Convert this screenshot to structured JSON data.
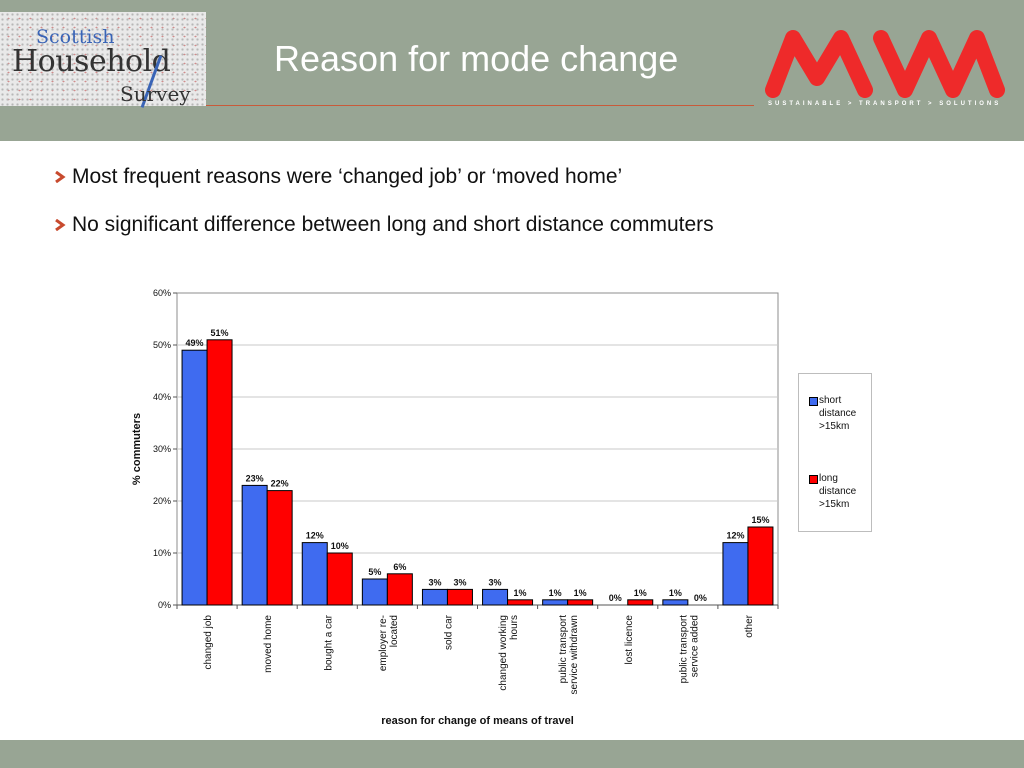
{
  "header": {
    "title": "Reason for mode change",
    "logo_left": {
      "line1": "Scottish",
      "line2": "Household",
      "line3": "Survey"
    },
    "logo_right": {
      "mark": "MVA",
      "tagline": "SUSTAINABLE > TRANSPORT > SOLUTIONS"
    }
  },
  "bullets": [
    "Most frequent reasons were ‘changed job’ or ‘moved home’",
    "No significant difference between long and short distance commuters"
  ],
  "colors": {
    "header_bg": "#98a594",
    "bullet_icon": "#c84a2e",
    "series_short": "#3f6bf0",
    "series_long": "#ff0000",
    "mva_red": "#ee2a2a"
  },
  "icons": {
    "bullet": "chevron-right-icon"
  },
  "chart_data": {
    "type": "bar",
    "xlabel": "reason for change of means of travel",
    "ylabel": "% commuters",
    "ylim": [
      0,
      60
    ],
    "yticks": [
      "0%",
      "10%",
      "20%",
      "30%",
      "40%",
      "50%",
      "60%"
    ],
    "grid": true,
    "legend_position": "right",
    "categories": [
      [
        "changed job"
      ],
      [
        "moved home"
      ],
      [
        "bought a car"
      ],
      [
        "employer re-",
        "located"
      ],
      [
        "sold car"
      ],
      [
        "changed working",
        "hours"
      ],
      [
        "public transport",
        "service withdrawn"
      ],
      [
        "lost licence"
      ],
      [
        "public transport",
        "service added"
      ],
      [
        "other"
      ]
    ],
    "series": [
      {
        "name": "short distance >15km",
        "legend_lines": [
          "short",
          "distance",
          ">15km"
        ],
        "color": "#3f6bf0",
        "values": [
          49,
          23,
          12,
          5,
          3,
          3,
          1,
          0,
          1,
          12
        ],
        "labels": [
          "49%",
          "23%",
          "12%",
          "5%",
          "3%",
          "3%",
          "1%",
          "0%",
          "1%",
          "12%"
        ]
      },
      {
        "name": "long distance >15km",
        "legend_lines": [
          "long",
          "distance",
          ">15km"
        ],
        "color": "#ff0000",
        "values": [
          51,
          22,
          10,
          6,
          3,
          1,
          1,
          1,
          0,
          15
        ],
        "labels": [
          "51%",
          "22%",
          "10%",
          "6%",
          "3%",
          "1%",
          "1%",
          "1%",
          "0%",
          "15%"
        ]
      }
    ]
  }
}
